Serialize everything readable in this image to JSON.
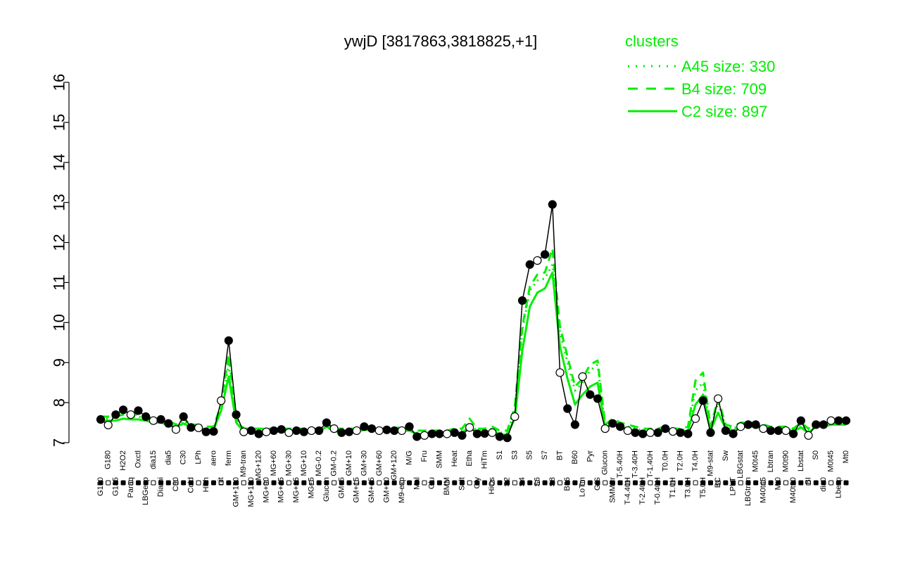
{
  "chart_data": {
    "type": "line",
    "title": "ywjD [3817863,3818825,+1]",
    "xlabel": "",
    "ylabel": "",
    "ylim": [
      7,
      16
    ],
    "yticks": [
      7,
      8,
      9,
      10,
      11,
      12,
      13,
      14,
      15,
      16
    ],
    "grid": false,
    "legend": {
      "title": "clusters",
      "position": "top-right",
      "color": "#00ee00",
      "entries": [
        {
          "label": "A45 size: 330",
          "style": "dotted"
        },
        {
          "label": "B4 size: 709",
          "style": "dashed"
        },
        {
          "label": "C2 size: 897",
          "style": "solid"
        }
      ]
    },
    "x_tick_labels": [
      "G150",
      "G180",
      "G135",
      "H2O2",
      "Paraq",
      "Oxctl",
      "LBGexp",
      "dia15",
      "Diami",
      "dia5",
      "C90",
      "C30",
      "Cold",
      "LPh",
      "HPh",
      "aero",
      "nit",
      "ferm",
      "GM+150",
      "M9-tran",
      "MG+150",
      "MG+120",
      "MG+90",
      "MG+60",
      "MG+45",
      "MG+30",
      "MG+15",
      "MG+10",
      "MG+5",
      "MG-0.2",
      "Glucon",
      "GM-0.2",
      "GM+5",
      "GM+10",
      "GM+15",
      "GM+30",
      "GM+45",
      "GM+60",
      "GM+90",
      "GM+120",
      "M9-exp",
      "M/G",
      "Mal",
      "Fru",
      "Glu",
      "SMM",
      "BMM",
      "Heat",
      "Salt",
      "Etha",
      "Gly",
      "HiTm",
      "HiOs",
      "S1",
      "S2",
      "S3",
      "S4",
      "S5",
      "S6",
      "S7",
      "S8",
      "BT",
      "B36",
      "B60",
      "LoTm",
      "Pyr",
      "G/S",
      "Glucon",
      "SMMPr",
      "T-5.40H",
      "T-4.40H",
      "T-3.40H",
      "T-2.40H",
      "T-1.40H",
      "T-0.40H",
      "T0.0H",
      "T1.0H",
      "T2.0H",
      "T3.0H",
      "T4.0H",
      "T5.0H",
      "M9-stat",
      "BC",
      "Sw",
      "LPhT",
      "LBGstat",
      "LBGtran",
      "M0t45",
      "M40t45",
      "Lbtran",
      "Mt0",
      "M0t90",
      "M40t90",
      "Lbstat",
      "BI",
      "S0",
      "dia0",
      "M0t45",
      "Lbexp",
      "Mt0"
    ],
    "series": [
      {
        "name": "",
        "color": "#000000",
        "style": "solid-with-points",
        "values": [
          7.58,
          7.44,
          7.7,
          7.82,
          7.7,
          7.8,
          7.65,
          7.55,
          7.58,
          7.48,
          7.33,
          7.65,
          7.38,
          7.37,
          7.27,
          7.28,
          8.05,
          9.55,
          7.7,
          7.27,
          7.3,
          7.22,
          7.27,
          7.3,
          7.33,
          7.25,
          7.3,
          7.27,
          7.3,
          7.3,
          7.5,
          7.35,
          7.25,
          7.27,
          7.3,
          7.4,
          7.35,
          7.3,
          7.32,
          7.3,
          7.3,
          7.4,
          7.15,
          7.18,
          7.22,
          7.22,
          7.22,
          7.25,
          7.18,
          7.38,
          7.22,
          7.23,
          7.25,
          7.15,
          7.12,
          7.65,
          10.55,
          11.45,
          11.55,
          11.7,
          12.95,
          8.75,
          7.85,
          7.45,
          8.65,
          8.2,
          8.1,
          7.35,
          7.48,
          7.4,
          7.3,
          7.25,
          7.22,
          7.25,
          7.25,
          7.35,
          7.28,
          7.25,
          7.22,
          7.6,
          8.05,
          7.25,
          8.1,
          7.3,
          7.22,
          7.4,
          7.45,
          7.45,
          7.35,
          7.3,
          7.3,
          7.3,
          7.22,
          7.55,
          7.18,
          7.45,
          7.45,
          7.55,
          7.55,
          7.55
        ]
      },
      {
        "name": "",
        "color": "#00ee00",
        "style": "dotted",
        "values": [
          7.6,
          7.6,
          7.65,
          7.7,
          7.65,
          7.65,
          7.6,
          7.55,
          7.55,
          7.5,
          7.4,
          7.55,
          7.4,
          7.4,
          7.35,
          7.35,
          7.9,
          8.95,
          7.55,
          7.3,
          7.3,
          7.3,
          7.3,
          7.3,
          7.3,
          7.3,
          7.3,
          7.3,
          7.3,
          7.3,
          7.45,
          7.3,
          7.3,
          7.3,
          7.3,
          7.35,
          7.35,
          7.3,
          7.3,
          7.3,
          7.35,
          7.35,
          7.25,
          7.25,
          7.25,
          7.25,
          7.25,
          7.3,
          7.3,
          7.45,
          7.3,
          7.3,
          7.35,
          7.25,
          7.25,
          7.8,
          9.8,
          10.8,
          11.05,
          11.1,
          11.45,
          9.75,
          9.0,
          8.3,
          8.5,
          8.8,
          8.95,
          7.4,
          7.55,
          7.45,
          7.4,
          7.35,
          7.3,
          7.3,
          7.3,
          7.35,
          7.3,
          7.3,
          7.35,
          8.3,
          8.5,
          7.35,
          8.0,
          7.4,
          7.35,
          7.45,
          7.45,
          7.45,
          7.4,
          7.35,
          7.35,
          7.35,
          7.3,
          7.45,
          7.3,
          7.45,
          7.45,
          7.5,
          7.5,
          7.5
        ]
      },
      {
        "name": "",
        "color": "#00ee00",
        "style": "dashed",
        "values": [
          7.65,
          7.65,
          7.65,
          7.7,
          7.7,
          7.7,
          7.65,
          7.6,
          7.6,
          7.55,
          7.45,
          7.6,
          7.45,
          7.45,
          7.4,
          7.4,
          7.95,
          9.2,
          7.6,
          7.35,
          7.35,
          7.35,
          7.35,
          7.35,
          7.35,
          7.35,
          7.35,
          7.35,
          7.35,
          7.35,
          7.5,
          7.35,
          7.35,
          7.35,
          7.35,
          7.4,
          7.4,
          7.35,
          7.35,
          7.35,
          7.4,
          7.4,
          7.3,
          7.3,
          7.3,
          7.3,
          7.3,
          7.35,
          7.35,
          7.6,
          7.35,
          7.35,
          7.4,
          7.3,
          7.3,
          7.9,
          9.9,
          10.9,
          11.2,
          11.25,
          11.85,
          9.9,
          9.15,
          8.4,
          8.6,
          8.95,
          9.05,
          7.45,
          7.6,
          7.5,
          7.45,
          7.4,
          7.35,
          7.35,
          7.35,
          7.4,
          7.35,
          7.35,
          7.4,
          8.55,
          8.75,
          7.4,
          8.1,
          7.45,
          7.4,
          7.5,
          7.5,
          7.5,
          7.45,
          7.4,
          7.4,
          7.4,
          7.35,
          7.5,
          7.35,
          7.5,
          7.5,
          7.55,
          7.55,
          7.55
        ]
      },
      {
        "name": "",
        "color": "#00ee00",
        "style": "solid",
        "values": [
          7.55,
          7.55,
          7.55,
          7.6,
          7.58,
          7.58,
          7.55,
          7.5,
          7.5,
          7.45,
          7.38,
          7.48,
          7.38,
          7.38,
          7.33,
          7.33,
          7.8,
          8.65,
          7.5,
          7.28,
          7.28,
          7.28,
          7.28,
          7.28,
          7.28,
          7.28,
          7.28,
          7.28,
          7.28,
          7.28,
          7.4,
          7.28,
          7.28,
          7.28,
          7.28,
          7.32,
          7.32,
          7.28,
          7.28,
          7.28,
          7.3,
          7.3,
          7.22,
          7.22,
          7.22,
          7.22,
          7.22,
          7.25,
          7.25,
          7.4,
          7.25,
          7.25,
          7.3,
          7.2,
          7.2,
          7.6,
          9.3,
          10.4,
          10.75,
          10.85,
          11.25,
          9.4,
          8.6,
          7.95,
          8.2,
          8.4,
          8.5,
          7.38,
          7.45,
          7.4,
          7.35,
          7.3,
          7.28,
          7.28,
          7.28,
          7.3,
          7.28,
          7.28,
          7.3,
          7.95,
          8.2,
          7.3,
          7.75,
          7.35,
          7.3,
          7.4,
          7.4,
          7.4,
          7.35,
          7.32,
          7.32,
          7.32,
          7.28,
          7.38,
          7.25,
          7.4,
          7.4,
          7.45,
          7.45,
          7.45
        ]
      }
    ]
  }
}
